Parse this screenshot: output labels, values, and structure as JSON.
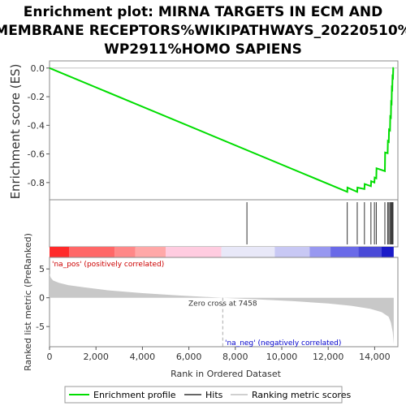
{
  "chart_data": {
    "type": "line",
    "title_lines": [
      "Enrichment plot: MIRNA TARGETS IN ECM AND",
      "MEMBRANE RECEPTORS%WIKIPATHWAYS_20220510%",
      "WP2911%HOMO SAPIENS"
    ],
    "es_panel": {
      "ylabel": "Enrichment score (ES)",
      "ylim": [
        -0.92,
        0.05
      ],
      "yticks": [
        {
          "v": 0.0,
          "label": "0.0"
        },
        {
          "v": -0.2,
          "label": "-0.2"
        },
        {
          "v": -0.4,
          "label": "-0.4"
        },
        {
          "v": -0.6,
          "label": "-0.6"
        },
        {
          "v": -0.8,
          "label": "-0.8"
        }
      ],
      "series": [
        {
          "name": "Enrichment profile",
          "color": "#00dd00",
          "x": [
            0,
            12820,
            12830,
            13250,
            13260,
            13560,
            13570,
            13840,
            13850,
            13990,
            14000,
            14070,
            14080,
            14440,
            14450,
            14560,
            14570,
            14610,
            14620,
            14660,
            14670,
            14700,
            14710,
            14730,
            14740,
            14760,
            14770,
            14790,
            14800,
            14820
          ],
          "y": [
            0.0,
            -0.865,
            -0.835,
            -0.865,
            -0.835,
            -0.845,
            -0.81,
            -0.825,
            -0.79,
            -0.8,
            -0.765,
            -0.77,
            -0.7,
            -0.72,
            -0.59,
            -0.595,
            -0.51,
            -0.515,
            -0.43,
            -0.435,
            -0.34,
            -0.345,
            -0.24,
            -0.245,
            -0.14,
            -0.145,
            -0.06,
            -0.065,
            0.0,
            0.0
          ]
        }
      ]
    },
    "hits": {
      "name": "Hits",
      "x": [
        8500,
        12820,
        13250,
        13560,
        13840,
        13990,
        14070,
        14440,
        14560,
        14610,
        14660,
        14700,
        14730,
        14760,
        14790
      ]
    },
    "ranked_panel": {
      "ylabel": "Ranked list metric (PreRanked)",
      "ylim": [
        -8.5,
        7
      ],
      "yticks": [
        {
          "v": 5,
          "label": "5"
        },
        {
          "v": 0,
          "label": "0"
        },
        {
          "v": -5,
          "label": "-5"
        }
      ],
      "series_name": "Ranking metric scores",
      "profile": {
        "x": [
          0,
          50,
          150,
          400,
          800,
          1500,
          2500,
          4000,
          5500,
          7458,
          9000,
          10500,
          12000,
          13000,
          13800,
          14300,
          14600,
          14700,
          14780,
          14820
        ],
        "y": [
          4.2,
          3.5,
          3.0,
          2.6,
          2.2,
          1.8,
          1.3,
          0.8,
          0.4,
          0.0,
          -0.3,
          -0.6,
          -1.0,
          -1.4,
          -1.9,
          -2.5,
          -3.3,
          -4.3,
          -6.0,
          -8.0
        ]
      },
      "pos_label": "'na_pos' (positively correlated)",
      "neg_label": "'na_neg' (negatively correlated)",
      "zero_cross_label": "Zero cross at 7458",
      "zero_cross_x": 7458
    },
    "xaxis": {
      "label": "Rank in Ordered Dataset",
      "xlim": [
        0,
        15000
      ],
      "xmax_data": 14820,
      "ticks": [
        {
          "v": 0,
          "label": "0"
        },
        {
          "v": 2000,
          "label": "2,000"
        },
        {
          "v": 4000,
          "label": "4,000"
        },
        {
          "v": 6000,
          "label": "6,000"
        },
        {
          "v": 8000,
          "label": "8,000"
        },
        {
          "v": 10000,
          "label": "10,000"
        },
        {
          "v": 12000,
          "label": "12,000"
        },
        {
          "v": 14000,
          "label": "14,000"
        }
      ]
    },
    "heat_bar": [
      {
        "x0": 0,
        "x1": 850,
        "color": "#ff2a2a"
      },
      {
        "x0": 850,
        "x1": 2800,
        "color": "#ff6767"
      },
      {
        "x0": 2800,
        "x1": 3700,
        "color": "#ff8888"
      },
      {
        "x0": 3700,
        "x1": 5000,
        "color": "#ffa8a8"
      },
      {
        "x0": 5000,
        "x1": 7400,
        "color": "#ffcce0"
      },
      {
        "x0": 7400,
        "x1": 9700,
        "color": "#e8e8f8"
      },
      {
        "x0": 9700,
        "x1": 11200,
        "color": "#c8c8f4"
      },
      {
        "x0": 11200,
        "x1": 12100,
        "color": "#9898f0"
      },
      {
        "x0": 12100,
        "x1": 13300,
        "color": "#6a6ae8"
      },
      {
        "x0": 13300,
        "x1": 14300,
        "color": "#4a4ad8"
      },
      {
        "x0": 14300,
        "x1": 14820,
        "color": "#1a1ac8"
      }
    ],
    "legend": [
      {
        "label": "Enrichment profile",
        "color": "#00dd00"
      },
      {
        "label": "Hits",
        "color": "#000000"
      },
      {
        "label": "Ranking metric scores",
        "color": "#c8c8c8"
      }
    ]
  }
}
